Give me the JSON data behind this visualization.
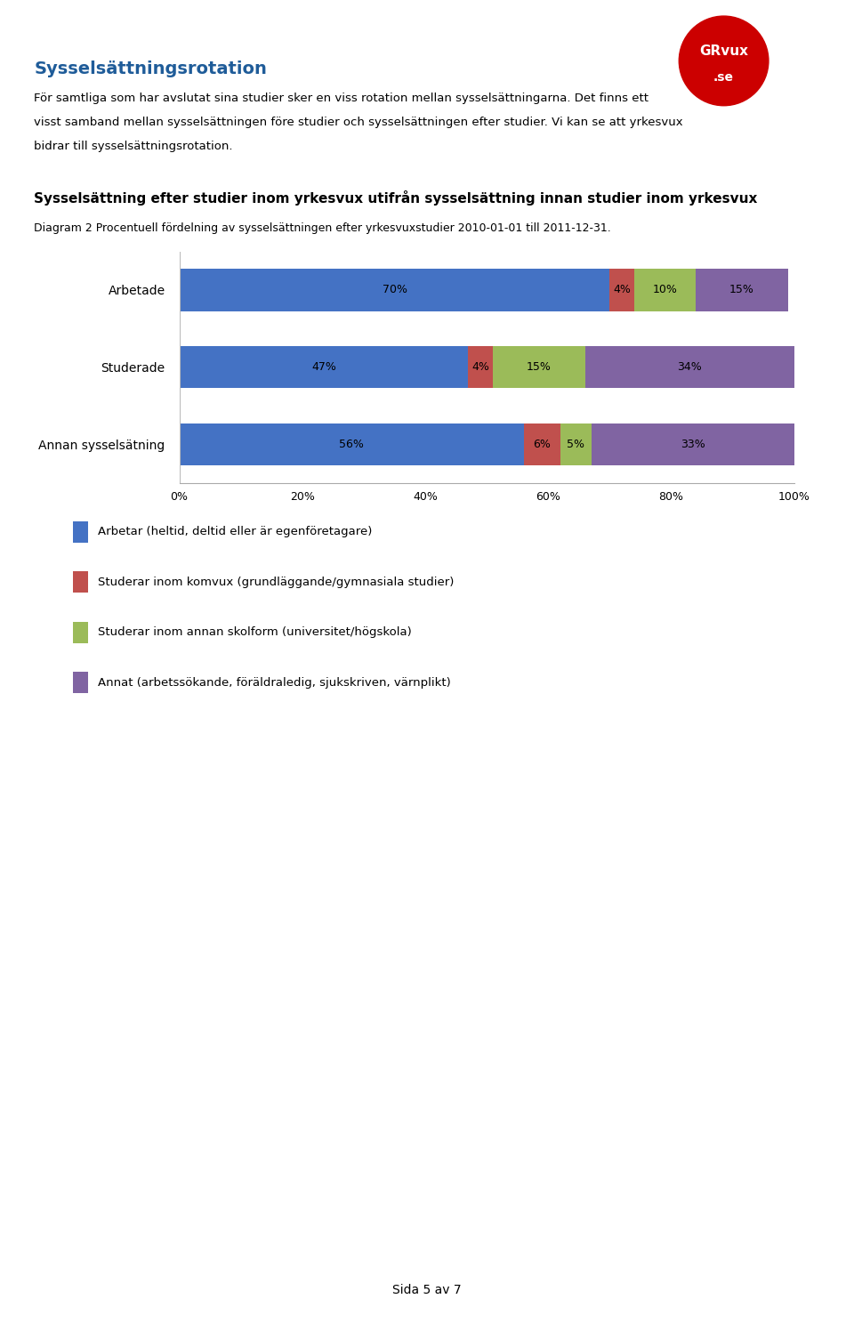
{
  "title_main": "Sysselsättningsrotation",
  "paragraph_line1": "För samtliga som har avslutat sina studier sker en viss rotation mellan sysselsättningarna. Det finns ett",
  "paragraph_line2": "visst samband mellan sysselsättningen före studier och sysselsättningen efter studier. Vi kan se att yrkesvux",
  "paragraph_line3": "bidrar till sysselsättningsrotation.",
  "chart_title": "Sysselsättning efter studier inom yrkesvux utifrån sysselsättning innan studier inom yrkesvux",
  "chart_subtitle": "Diagram 2 Procentuell fördelning av sysselsättningen efter yrkesvuxstudier 2010-01-01 till 2011-12-31.",
  "categories": [
    "Arbetade",
    "Studerade",
    "Annan sysselsätning"
  ],
  "data": {
    "Arbetade": [
      70,
      4,
      10,
      15
    ],
    "Studerade": [
      47,
      4,
      15,
      34
    ],
    "Annan sysselsätning": [
      56,
      6,
      5,
      33
    ]
  },
  "colors": [
    "#4472C4",
    "#C0504D",
    "#9BBB59",
    "#8064A2"
  ],
  "legend_labels": [
    "Arbetar (heltid, deltid eller är egenföretagare)",
    "Studerar inom komvux (grundläggande/gymnasiala studier)",
    "Studerar inom annan skolform (universitet/högskola)",
    "Annat (arbetssökande, föräldraledig, sjukskriven, värnplikt)"
  ],
  "xticks": [
    0,
    20,
    40,
    60,
    80,
    100
  ],
  "xlabels": [
    "0%",
    "20%",
    "40%",
    "60%",
    "80%",
    "100%"
  ],
  "title_color": "#1F5C99",
  "background_color": "#FFFFFF",
  "page_footer": "Sida 5 av 7"
}
